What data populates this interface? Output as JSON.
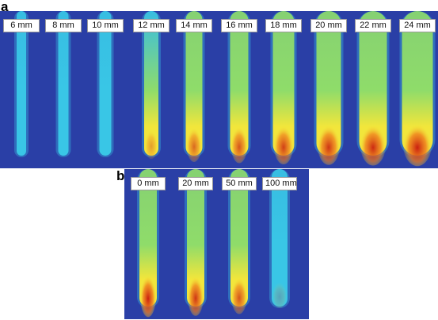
{
  "panel_a": {
    "letter": "a",
    "labels": [
      "6 mm",
      "8 mm",
      "10 mm",
      "12 mm",
      "14 mm",
      "16 mm",
      "18 mm",
      "20 mm",
      "22 mm",
      "24 mm"
    ]
  },
  "panel_b": {
    "letter": "b",
    "labels": [
      "0 mm",
      "20 mm",
      "50 mm",
      "100 mm"
    ]
  },
  "colors": {
    "background_blue": "#2a3fa6",
    "cool_cyan": "#39c6e6",
    "mid_green": "#8fdc6a",
    "hot_yellow": "#f2e63b",
    "hot_red": "#c8140e"
  }
}
